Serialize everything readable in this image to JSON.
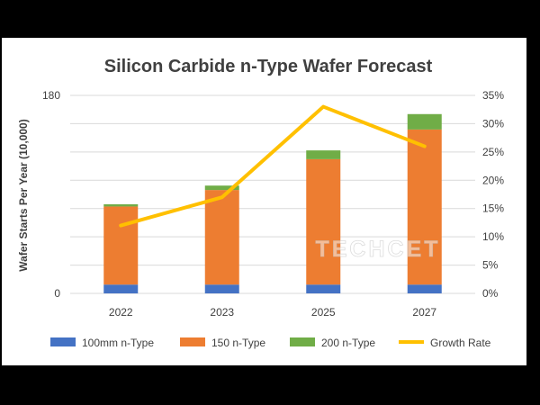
{
  "chart_data": {
    "type": "bar",
    "title": "Silicon Carbide n-Type Wafer Forecast",
    "ylabel": "Wafer Starts Per Year (10,000)",
    "categories": [
      "2022",
      "2023",
      "2025",
      "2027"
    ],
    "stacked": true,
    "ylim": [
      0,
      180
    ],
    "y_ticks": [
      "180",
      "0"
    ],
    "y2lim": [
      0,
      35
    ],
    "y2_ticks": [
      "0%",
      "5%",
      "10%",
      "15%",
      "20%",
      "25%",
      "30%",
      "35%"
    ],
    "series": [
      {
        "name": "100mm n-Type",
        "type": "bar",
        "axis": "left",
        "color": "#4472c4",
        "values": [
          8,
          8,
          8,
          8
        ]
      },
      {
        "name": "150 n-Type",
        "type": "bar",
        "axis": "left",
        "color": "#ed7d31",
        "values": [
          71,
          86,
          114,
          141
        ]
      },
      {
        "name": "200 n-Type",
        "type": "bar",
        "axis": "left",
        "color": "#70ad47",
        "values": [
          2,
          4,
          8,
          14
        ]
      },
      {
        "name": "Growth Rate",
        "type": "line",
        "axis": "right",
        "unit": "%",
        "color": "#ffc000",
        "values": [
          12,
          17,
          33,
          26
        ]
      }
    ],
    "grid": true,
    "legend_position": "bottom",
    "watermark": "TECHCET"
  }
}
